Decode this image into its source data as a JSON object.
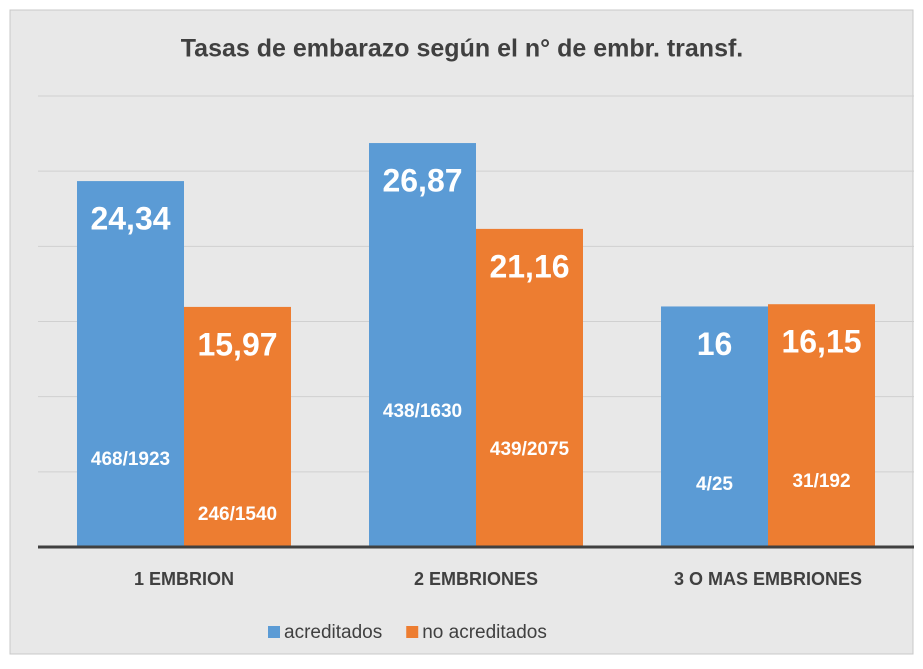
{
  "chart_data": {
    "type": "bar",
    "title": "Tasas de embarazo según el n° de embr. transf.",
    "categories": [
      "1 EMBRION",
      "2 EMBRIONES",
      "3 O MAS EMBRIONES"
    ],
    "series": [
      {
        "name": "acreditados",
        "color": "#5b9bd5",
        "values": [
          24.34,
          26.87,
          16
        ],
        "value_labels": [
          "24,34",
          "26,87",
          "16"
        ],
        "annotations": [
          "468/1923",
          "438/1630",
          "4/25"
        ]
      },
      {
        "name": "no acreditados",
        "color": "#ed7d31",
        "values": [
          15.97,
          21.16,
          16.15
        ],
        "value_labels": [
          "15,97",
          "21,16",
          "16,15"
        ],
        "annotations": [
          "246/1540",
          "439/2075",
          "31/192"
        ]
      }
    ],
    "ylim": [
      0,
      30
    ],
    "yticks": [
      0,
      5,
      10,
      15,
      20,
      25,
      30
    ],
    "grid": true,
    "legend": "bottom"
  }
}
